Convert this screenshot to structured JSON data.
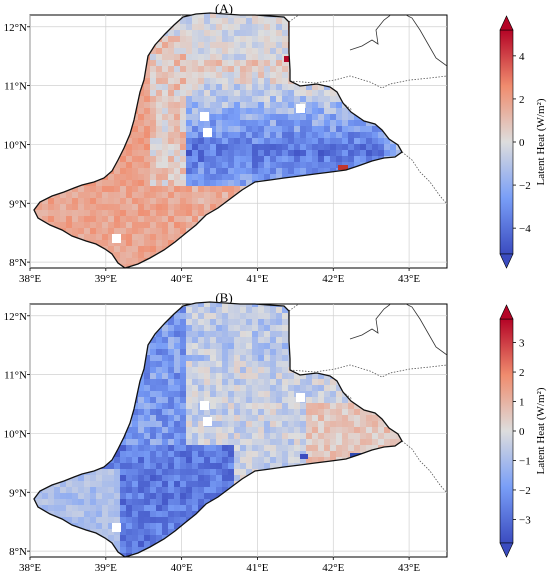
{
  "panels": [
    {
      "label": "(A)",
      "colorbar": {
        "label": "Latent Heat (W/m²)",
        "min": -5.2,
        "max": 5.2,
        "ticks": [
          "4",
          "2",
          "0",
          "−2",
          "−4"
        ],
        "tick_values": [
          4,
          2,
          0,
          -2,
          -4
        ]
      }
    },
    {
      "label": "(B)",
      "colorbar": {
        "label": "Latent Heat (W/m²)",
        "min": -3.8,
        "max": 3.8,
        "ticks": [
          "3",
          "2",
          "1",
          "0",
          "−1",
          "−2",
          "−3"
        ],
        "tick_values": [
          3,
          2,
          1,
          0,
          -1,
          -2,
          -3
        ]
      }
    }
  ],
  "map": {
    "lon_ticks": [
      "38°E",
      "39°E",
      "40°E",
      "41°E",
      "42°E",
      "43°E"
    ],
    "lat_ticks": [
      "12°N",
      "11°N",
      "10°N",
      "9°N",
      "8°N"
    ],
    "lon_range": [
      38,
      43.5
    ],
    "lat_range": [
      7.9,
      12.2
    ],
    "colormap": "coolwarm",
    "colors": {
      "cold": "#3b4cc0",
      "neutral": "#dddddd",
      "warm": "#b40426"
    }
  }
}
